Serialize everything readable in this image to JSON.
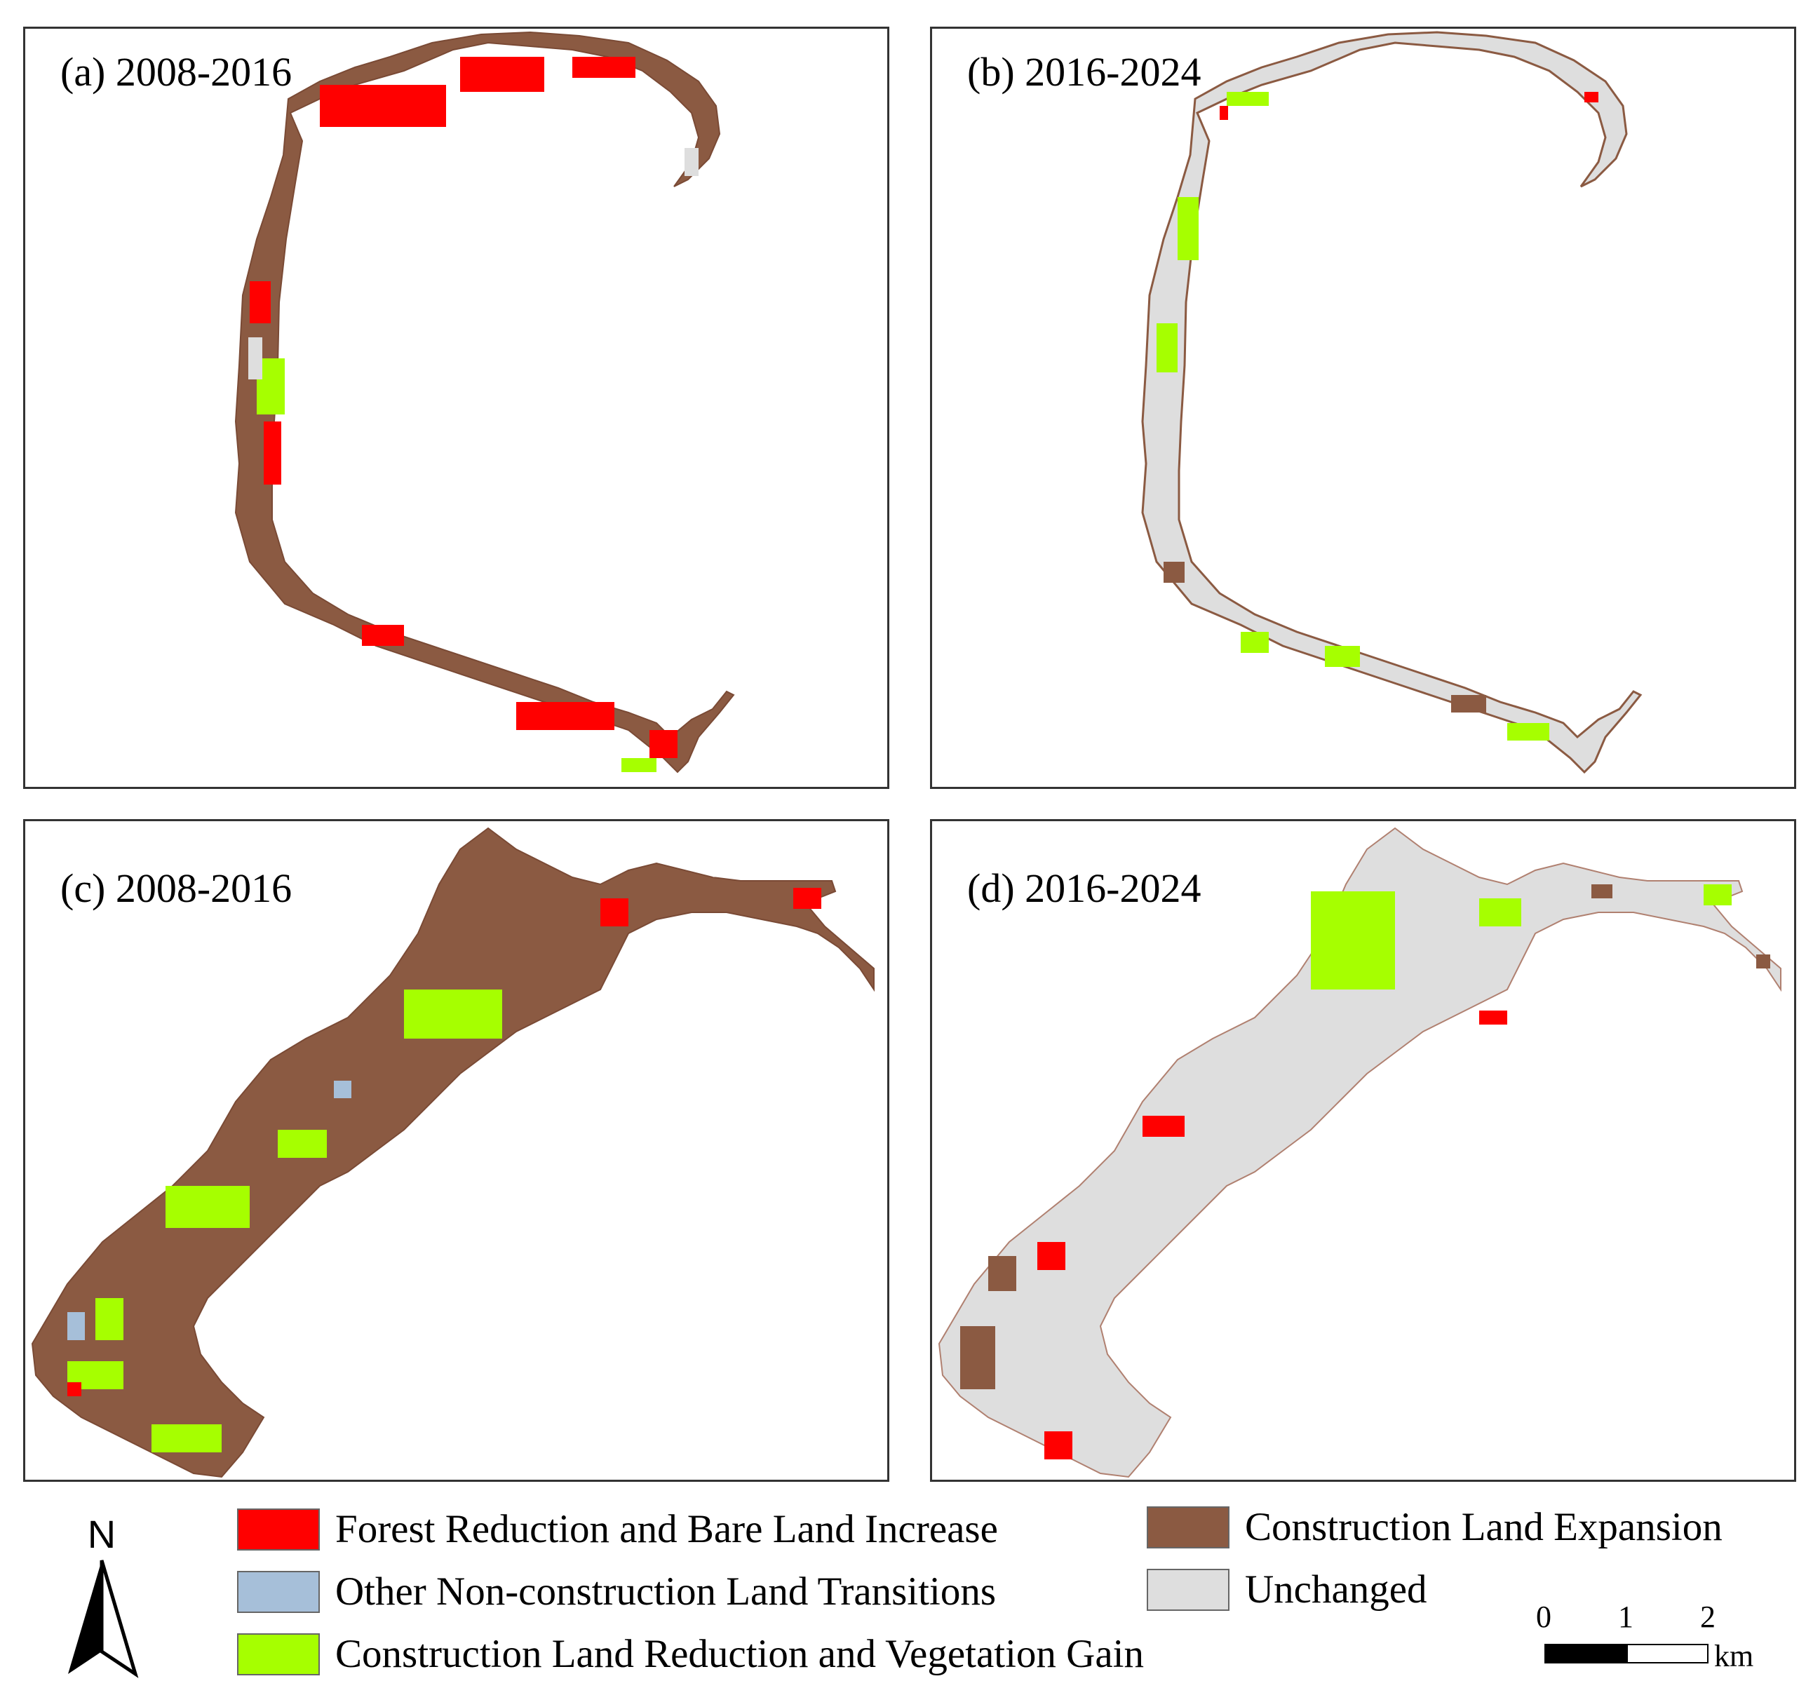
{
  "panels": [
    {
      "id": "a",
      "label": "(a) 2008-2016"
    },
    {
      "id": "b",
      "label": "(b) 2016-2024"
    },
    {
      "id": "c",
      "label": "(c) 2008-2016"
    },
    {
      "id": "d",
      "label": "(d) 2016-2024"
    }
  ],
  "legend": {
    "items": [
      {
        "label": "Forest Reduction and Bare Land Increase",
        "color": "#ff0000"
      },
      {
        "label": "Other Non-construction Land Transitions",
        "color": "#a6bfd9"
      },
      {
        "label": "Construction Land Reduction and Vegetation Gain",
        "color": "#a6ff00"
      },
      {
        "label": "Construction Land Expansion",
        "color": "#8b5a42"
      },
      {
        "label": "Unchanged",
        "color": "#dedede"
      }
    ]
  },
  "north_arrow": {
    "letter": "N"
  },
  "scale_bar": {
    "ticks": [
      "0",
      "1",
      "2"
    ],
    "unit": "km"
  }
}
